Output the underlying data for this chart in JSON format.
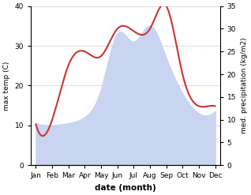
{
  "months": [
    "Jan",
    "Feb",
    "Mar",
    "Apr",
    "May",
    "Jun",
    "Jul",
    "Aug",
    "Sep",
    "Oct",
    "Nov",
    "Dec"
  ],
  "max_temp": [
    10.5,
    10.0,
    10.5,
    12.0,
    19.0,
    33.0,
    31.0,
    35.0,
    27.0,
    18.0,
    13.0,
    13.5
  ],
  "precipitation": [
    9.0,
    10.0,
    22.0,
    25.0,
    24.0,
    30.0,
    29.5,
    30.0,
    35.0,
    20.0,
    13.0,
    13.0
  ],
  "temp_fill_color": "#c8d4f0",
  "precip_color": "#cc3333",
  "temp_ylim": [
    0,
    40
  ],
  "precip_ylim": [
    0,
    35
  ],
  "xlabel": "date (month)",
  "ylabel_left": "max temp (C)",
  "ylabel_right": "med. precipitation (kg/m2)",
  "bg_color": "#ffffff",
  "grid_color": "#d0d0d0",
  "temp_yticks": [
    0,
    10,
    20,
    30,
    40
  ],
  "precip_yticks": [
    0,
    5,
    10,
    15,
    20,
    25,
    30,
    35
  ]
}
